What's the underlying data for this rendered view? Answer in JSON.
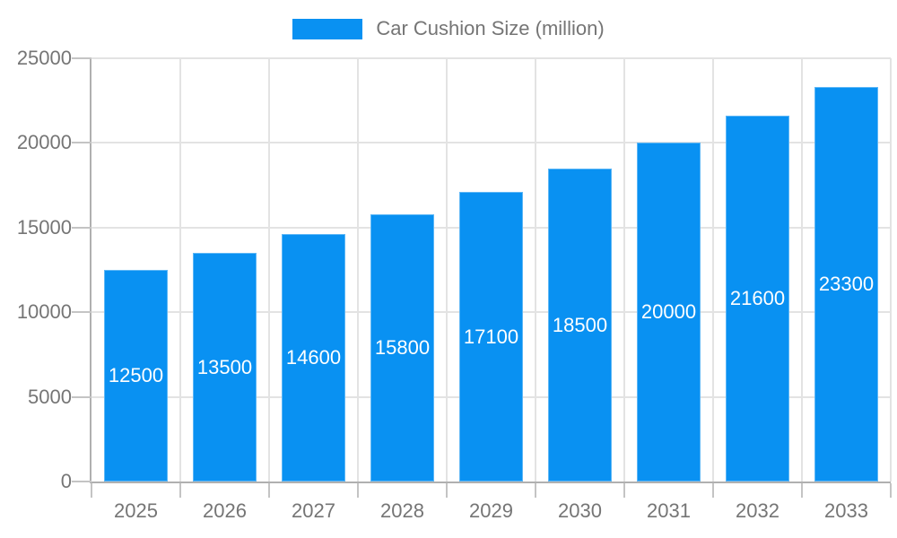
{
  "legend": {
    "label": "Car Cushion Size (million)"
  },
  "colors": {
    "bar": "#0991f2",
    "grid": "#e3e3e3",
    "axis_line": "#b0b0b0",
    "tick": "#c4c4c4",
    "axis_text": "#757575",
    "legend_text": "#757575",
    "bar_label_text": "#ffffff"
  },
  "chart_data": {
    "type": "bar",
    "title": "Car Cushion Size (million)",
    "categories": [
      "2025",
      "2026",
      "2027",
      "2028",
      "2029",
      "2030",
      "2031",
      "2032",
      "2033"
    ],
    "values": [
      12500,
      13500,
      14600,
      15800,
      17100,
      18500,
      20000,
      21600,
      23300
    ],
    "xlabel": "",
    "ylabel": "",
    "ylim": [
      0,
      25000
    ],
    "yticks": [
      0,
      5000,
      10000,
      15000,
      20000,
      25000
    ],
    "grid": true,
    "legend_entries": [
      "Car Cushion Size (million)"
    ],
    "legend_position": "top",
    "bar_label_position": "inside-center"
  }
}
